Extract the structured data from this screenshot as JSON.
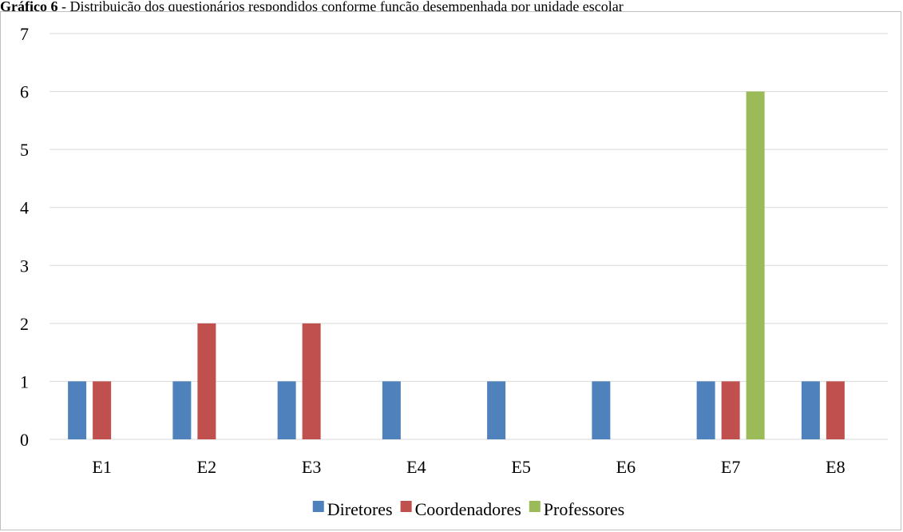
{
  "caption": {
    "label": "Gráfico 6",
    "text": " - Distribuição dos questionários respondidos conforme função desempenhada por unidade escolar"
  },
  "chart_data": {
    "type": "bar",
    "title": "",
    "xlabel": "",
    "ylabel": "",
    "categories": [
      "E1",
      "E2",
      "E3",
      "E4",
      "E5",
      "E6",
      "E7",
      "E8"
    ],
    "series": [
      {
        "name": "Diretores",
        "color": "#4f81bd",
        "values": [
          1,
          1,
          1,
          1,
          1,
          1,
          1,
          1
        ]
      },
      {
        "name": "Coordenadores",
        "color": "#c0504d",
        "values": [
          1,
          2,
          2,
          0,
          0,
          0,
          1,
          1
        ]
      },
      {
        "name": "Professores",
        "color": "#9bbb59",
        "values": [
          0,
          0,
          0,
          0,
          0,
          0,
          6,
          0
        ]
      }
    ],
    "ylim": [
      0,
      7
    ],
    "yticks": [
      0,
      1,
      2,
      3,
      4,
      5,
      6,
      7
    ],
    "grid": true,
    "legend_position": "bottom"
  }
}
